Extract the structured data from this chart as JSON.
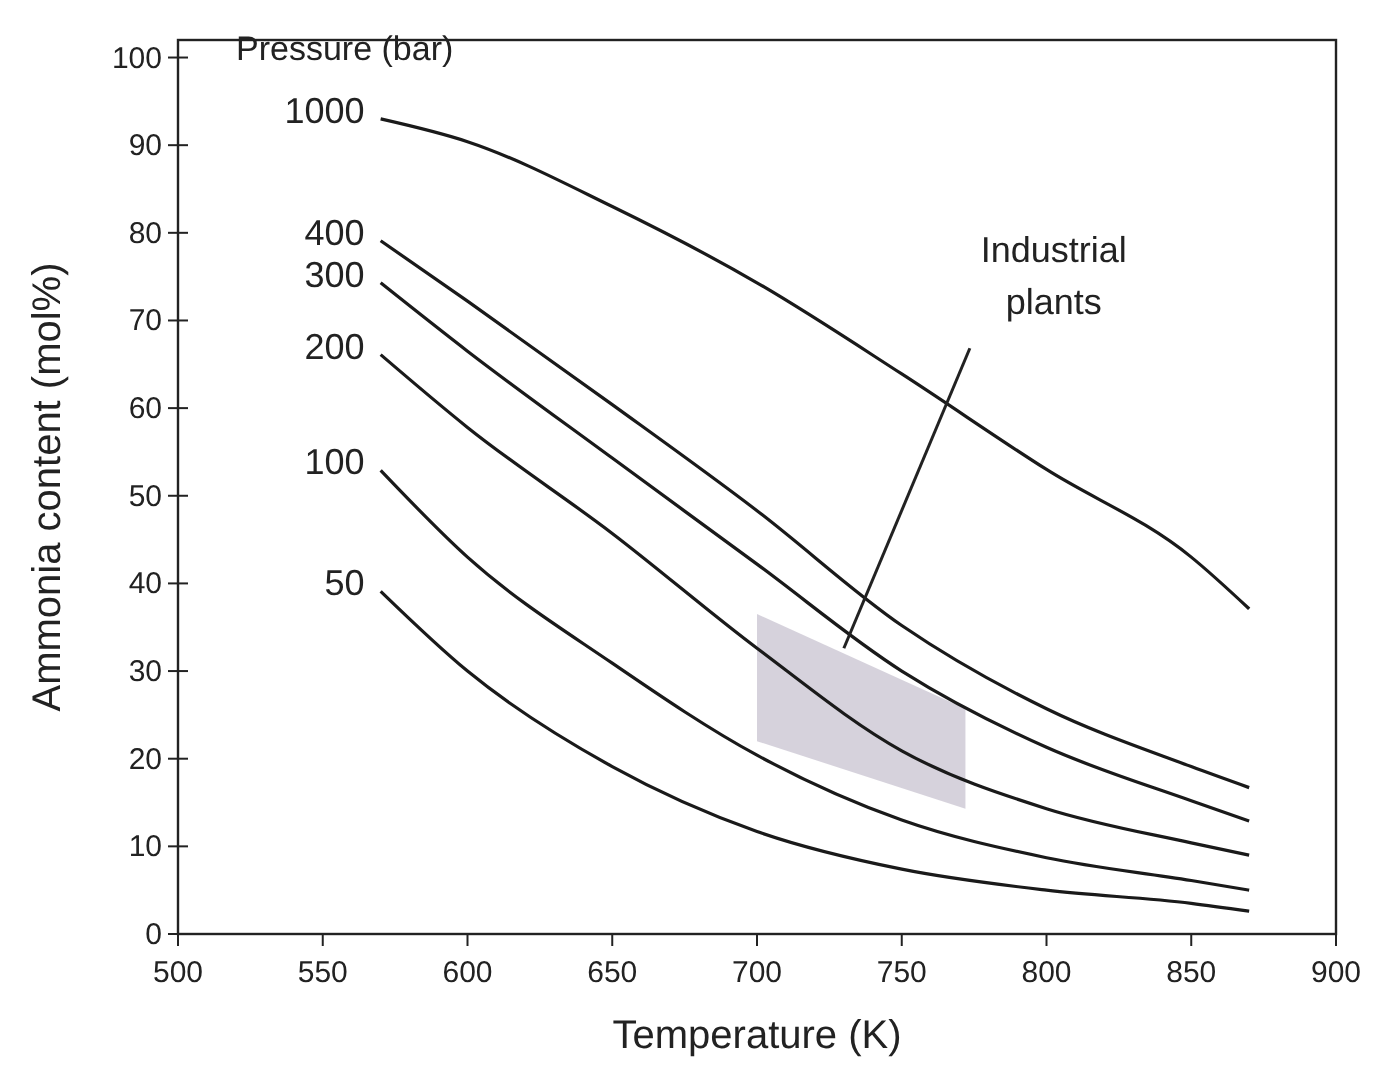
{
  "chart_data": {
    "type": "line",
    "xlabel": "Temperature (K)",
    "ylabel": "Ammonia content (mol%)",
    "legend_title": "Pressure (bar)",
    "x": [
      570,
      600,
      650,
      700,
      750,
      800,
      850,
      870
    ],
    "series": [
      {
        "name": "1000",
        "color": "#1a1a1a",
        "values": [
          93.0,
          90.4,
          83.0,
          74.3,
          63.9,
          53.0,
          43.0,
          37.1
        ]
      },
      {
        "name": "400",
        "color": "#1a1a1a",
        "values": [
          79.1,
          72.2,
          60.4,
          48.3,
          35.2,
          25.7,
          19.1,
          16.7
        ]
      },
      {
        "name": "300",
        "color": "#1a1a1a",
        "values": [
          74.3,
          66.5,
          54.3,
          42.2,
          30.0,
          21.3,
          15.2,
          12.9
        ]
      },
      {
        "name": "200",
        "color": "#1a1a1a",
        "values": [
          66.1,
          57.8,
          45.7,
          32.6,
          20.9,
          14.3,
          10.4,
          9.0
        ]
      },
      {
        "name": "100",
        "color": "#1a1a1a",
        "values": [
          52.9,
          43.0,
          30.9,
          20.4,
          13.0,
          8.7,
          6.1,
          5.0
        ]
      },
      {
        "name": "50",
        "color": "#1a1a1a",
        "values": [
          39.1,
          30.0,
          19.1,
          11.7,
          7.4,
          5.0,
          3.5,
          2.6
        ]
      }
    ],
    "annotations": [
      "Industrial plants"
    ],
    "xlim": [
      500,
      900
    ],
    "xticks": [
      500,
      550,
      600,
      650,
      700,
      750,
      800,
      850,
      900
    ],
    "ylim": [
      0,
      102
    ],
    "yticks": [
      0,
      10,
      20,
      30,
      40,
      50,
      60,
      70,
      80,
      90,
      100
    ],
    "grid": false,
    "marker": "none",
    "line_style": "solid"
  }
}
